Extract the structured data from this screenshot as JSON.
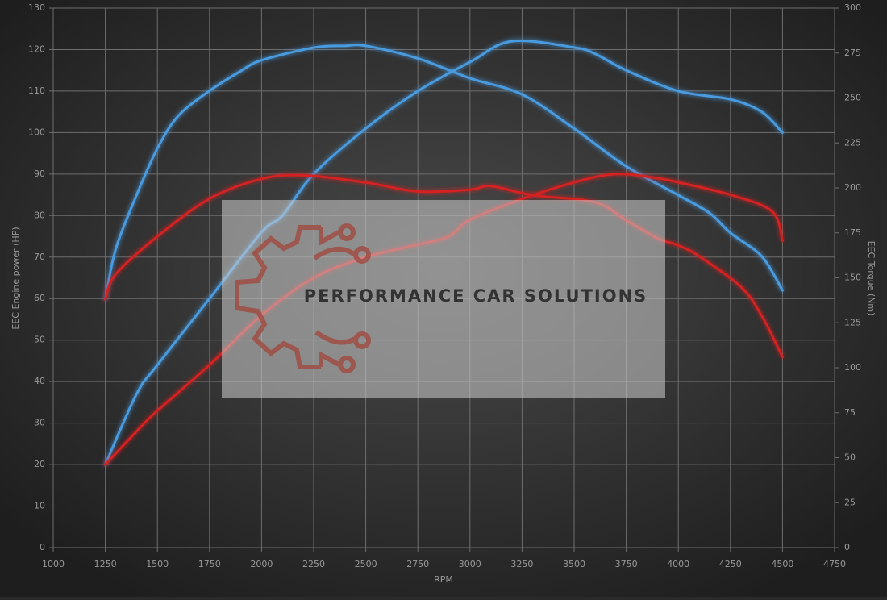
{
  "chart_data": {
    "type": "line",
    "x_label": "RPM",
    "y_label": "EEC Engine power (HP)",
    "y2_label": "EEC Torque (Nm)",
    "watermark": "PERFORMANCE CAR SOLUTIONS",
    "xlim": [
      1000,
      4750
    ],
    "xticks": [
      1000,
      1250,
      1500,
      1750,
      2000,
      2250,
      2500,
      2750,
      3000,
      3250,
      3500,
      3750,
      4000,
      4250,
      4500,
      4750
    ],
    "ylim": [
      0,
      130
    ],
    "yticks": [
      0,
      10,
      20,
      30,
      40,
      50,
      60,
      70,
      80,
      90,
      100,
      110,
      120,
      130
    ],
    "y2lim": [
      0,
      300
    ],
    "y2ticks": [
      0,
      25,
      50,
      75,
      100,
      125,
      150,
      175,
      200,
      225,
      250,
      275,
      300
    ],
    "grid": true,
    "series": [
      {
        "color": "#4a9be0",
        "axis": "y",
        "x": [
          1250,
          1400,
          1500,
          1750,
          2000,
          2100,
          2250,
          2500,
          2750,
          3000,
          3200,
          3500,
          3600,
          3750,
          4000,
          4250,
          4400,
          4500
        ],
        "values": [
          20,
          37,
          44,
          60,
          76,
          80,
          90,
          101,
          110,
          117,
          122,
          120.5,
          119,
          115,
          110,
          108,
          105,
          100
        ]
      },
      {
        "color": "#4a9be0",
        "axis": "y2",
        "x": [
          1250,
          1300,
          1400,
          1500,
          1600,
          1750,
          1900,
          2000,
          2250,
          2400,
          2500,
          2750,
          3000,
          3250,
          3500,
          3750,
          4000,
          4150,
          4250,
          4400,
          4500
        ],
        "values": [
          138,
          166,
          196,
          222,
          240,
          254,
          265,
          271,
          278,
          279,
          279,
          272,
          261,
          252,
          233,
          212,
          196,
          186,
          175,
          162,
          143
        ]
      },
      {
        "color": "#d42020",
        "axis": "y",
        "x": [
          1250,
          1400,
          1500,
          1750,
          2000,
          2250,
          2500,
          2750,
          2900,
          3000,
          3250,
          3500,
          3700,
          3900,
          4000,
          4250,
          4450,
          4500
        ],
        "values": [
          20,
          28,
          33,
          44,
          56,
          65,
          70,
          73,
          75,
          79,
          84,
          88,
          90,
          89,
          88,
          85,
          81,
          74
        ]
      },
      {
        "color": "#d42020",
        "axis": "y2",
        "x": [
          1250,
          1300,
          1500,
          1750,
          2000,
          2200,
          2500,
          2750,
          3000,
          3100,
          3300,
          3600,
          3750,
          3900,
          4000,
          4100,
          4300,
          4400,
          4500
        ],
        "values": [
          138,
          152,
          173,
          194,
          205,
          207,
          203,
          198,
          199,
          201,
          196,
          192,
          182,
          172,
          168,
          162,
          145,
          129,
          106
        ]
      }
    ]
  }
}
